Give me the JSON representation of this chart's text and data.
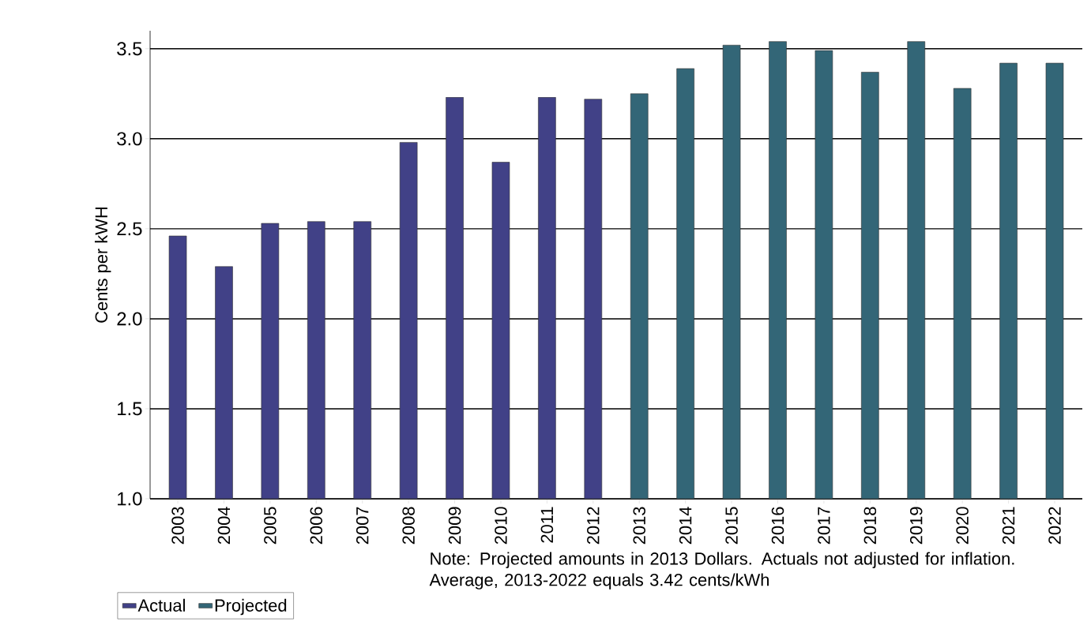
{
  "chart_data": {
    "type": "bar",
    "ylabel": "Cents per kWH",
    "categories": [
      "2003",
      "2004",
      "2005",
      "2006",
      "2007",
      "2008",
      "2009",
      "2010",
      "2011",
      "2012",
      "2013",
      "2014",
      "2015",
      "2016",
      "2017",
      "2018",
      "2019",
      "2020",
      "2021",
      "2022"
    ],
    "series": [
      {
        "name": "Actual",
        "color": "#414187",
        "values": [
          2.46,
          2.29,
          2.53,
          2.54,
          2.54,
          2.98,
          3.23,
          2.87,
          3.23,
          3.22,
          null,
          null,
          null,
          null,
          null,
          null,
          null,
          null,
          null,
          null
        ]
      },
      {
        "name": "Projected",
        "color": "#336677",
        "values": [
          null,
          null,
          null,
          null,
          null,
          null,
          null,
          null,
          null,
          null,
          3.25,
          3.39,
          3.52,
          3.54,
          3.49,
          3.37,
          3.54,
          3.28,
          3.42,
          3.42
        ]
      }
    ],
    "ylim": [
      1.0,
      3.6
    ],
    "yticks": [
      {
        "value": 1.0,
        "label": "1.0"
      },
      {
        "value": 1.5,
        "label": "1.5"
      },
      {
        "value": 2.0,
        "label": "2.0"
      },
      {
        "value": 2.5,
        "label": "2.5"
      },
      {
        "value": 3.0,
        "label": "3.0"
      },
      {
        "value": 3.5,
        "label": "3.5"
      }
    ],
    "grid": "y",
    "legend": "bottom left",
    "annotations": [
      "Note: Projected amounts in 2013 Dollars. Actuals not adjusted for inflation. Average, 2013-2022 equals 3.42 cents/kWh"
    ]
  }
}
